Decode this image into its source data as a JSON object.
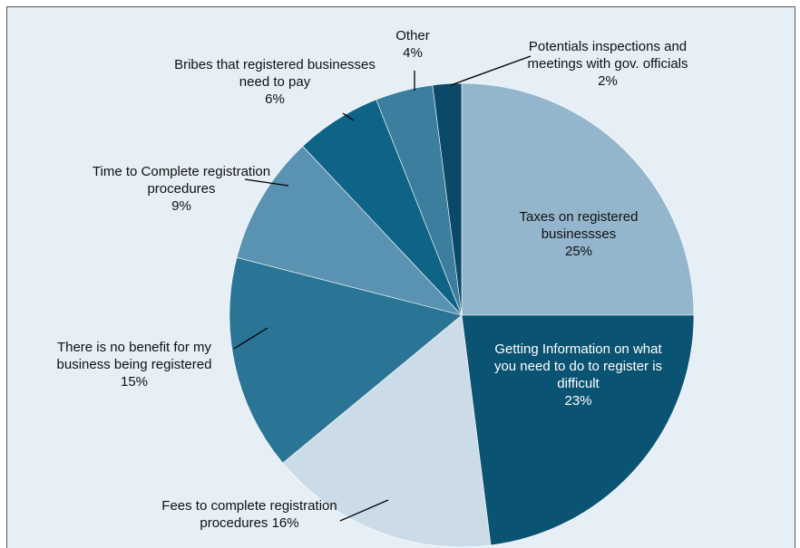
{
  "chart_data": {
    "type": "pie",
    "categories": [
      "Taxes on registered businessses",
      "Getting Information on what you need to do to register is difficult",
      "Fees to complete registration procedures",
      "There is no benefit for my business being registered",
      "Time to Complete registration procedures",
      "Bribes that registered businesses need to pay",
      "Other",
      "Potentials inspections and meetings with gov. officials"
    ],
    "values": [
      25,
      23,
      16,
      15,
      9,
      6,
      4,
      2
    ],
    "value_labels": [
      "25%",
      "23%",
      "16%",
      "15%",
      "9%",
      "6%",
      "4%",
      "2%"
    ],
    "colors": [
      "#93b6cd",
      "#0b5373",
      "#cbdce8",
      "#2a7595",
      "#5a93b1",
      "#0e6386",
      "#3b7e9d",
      "#0a4a68"
    ]
  }
}
